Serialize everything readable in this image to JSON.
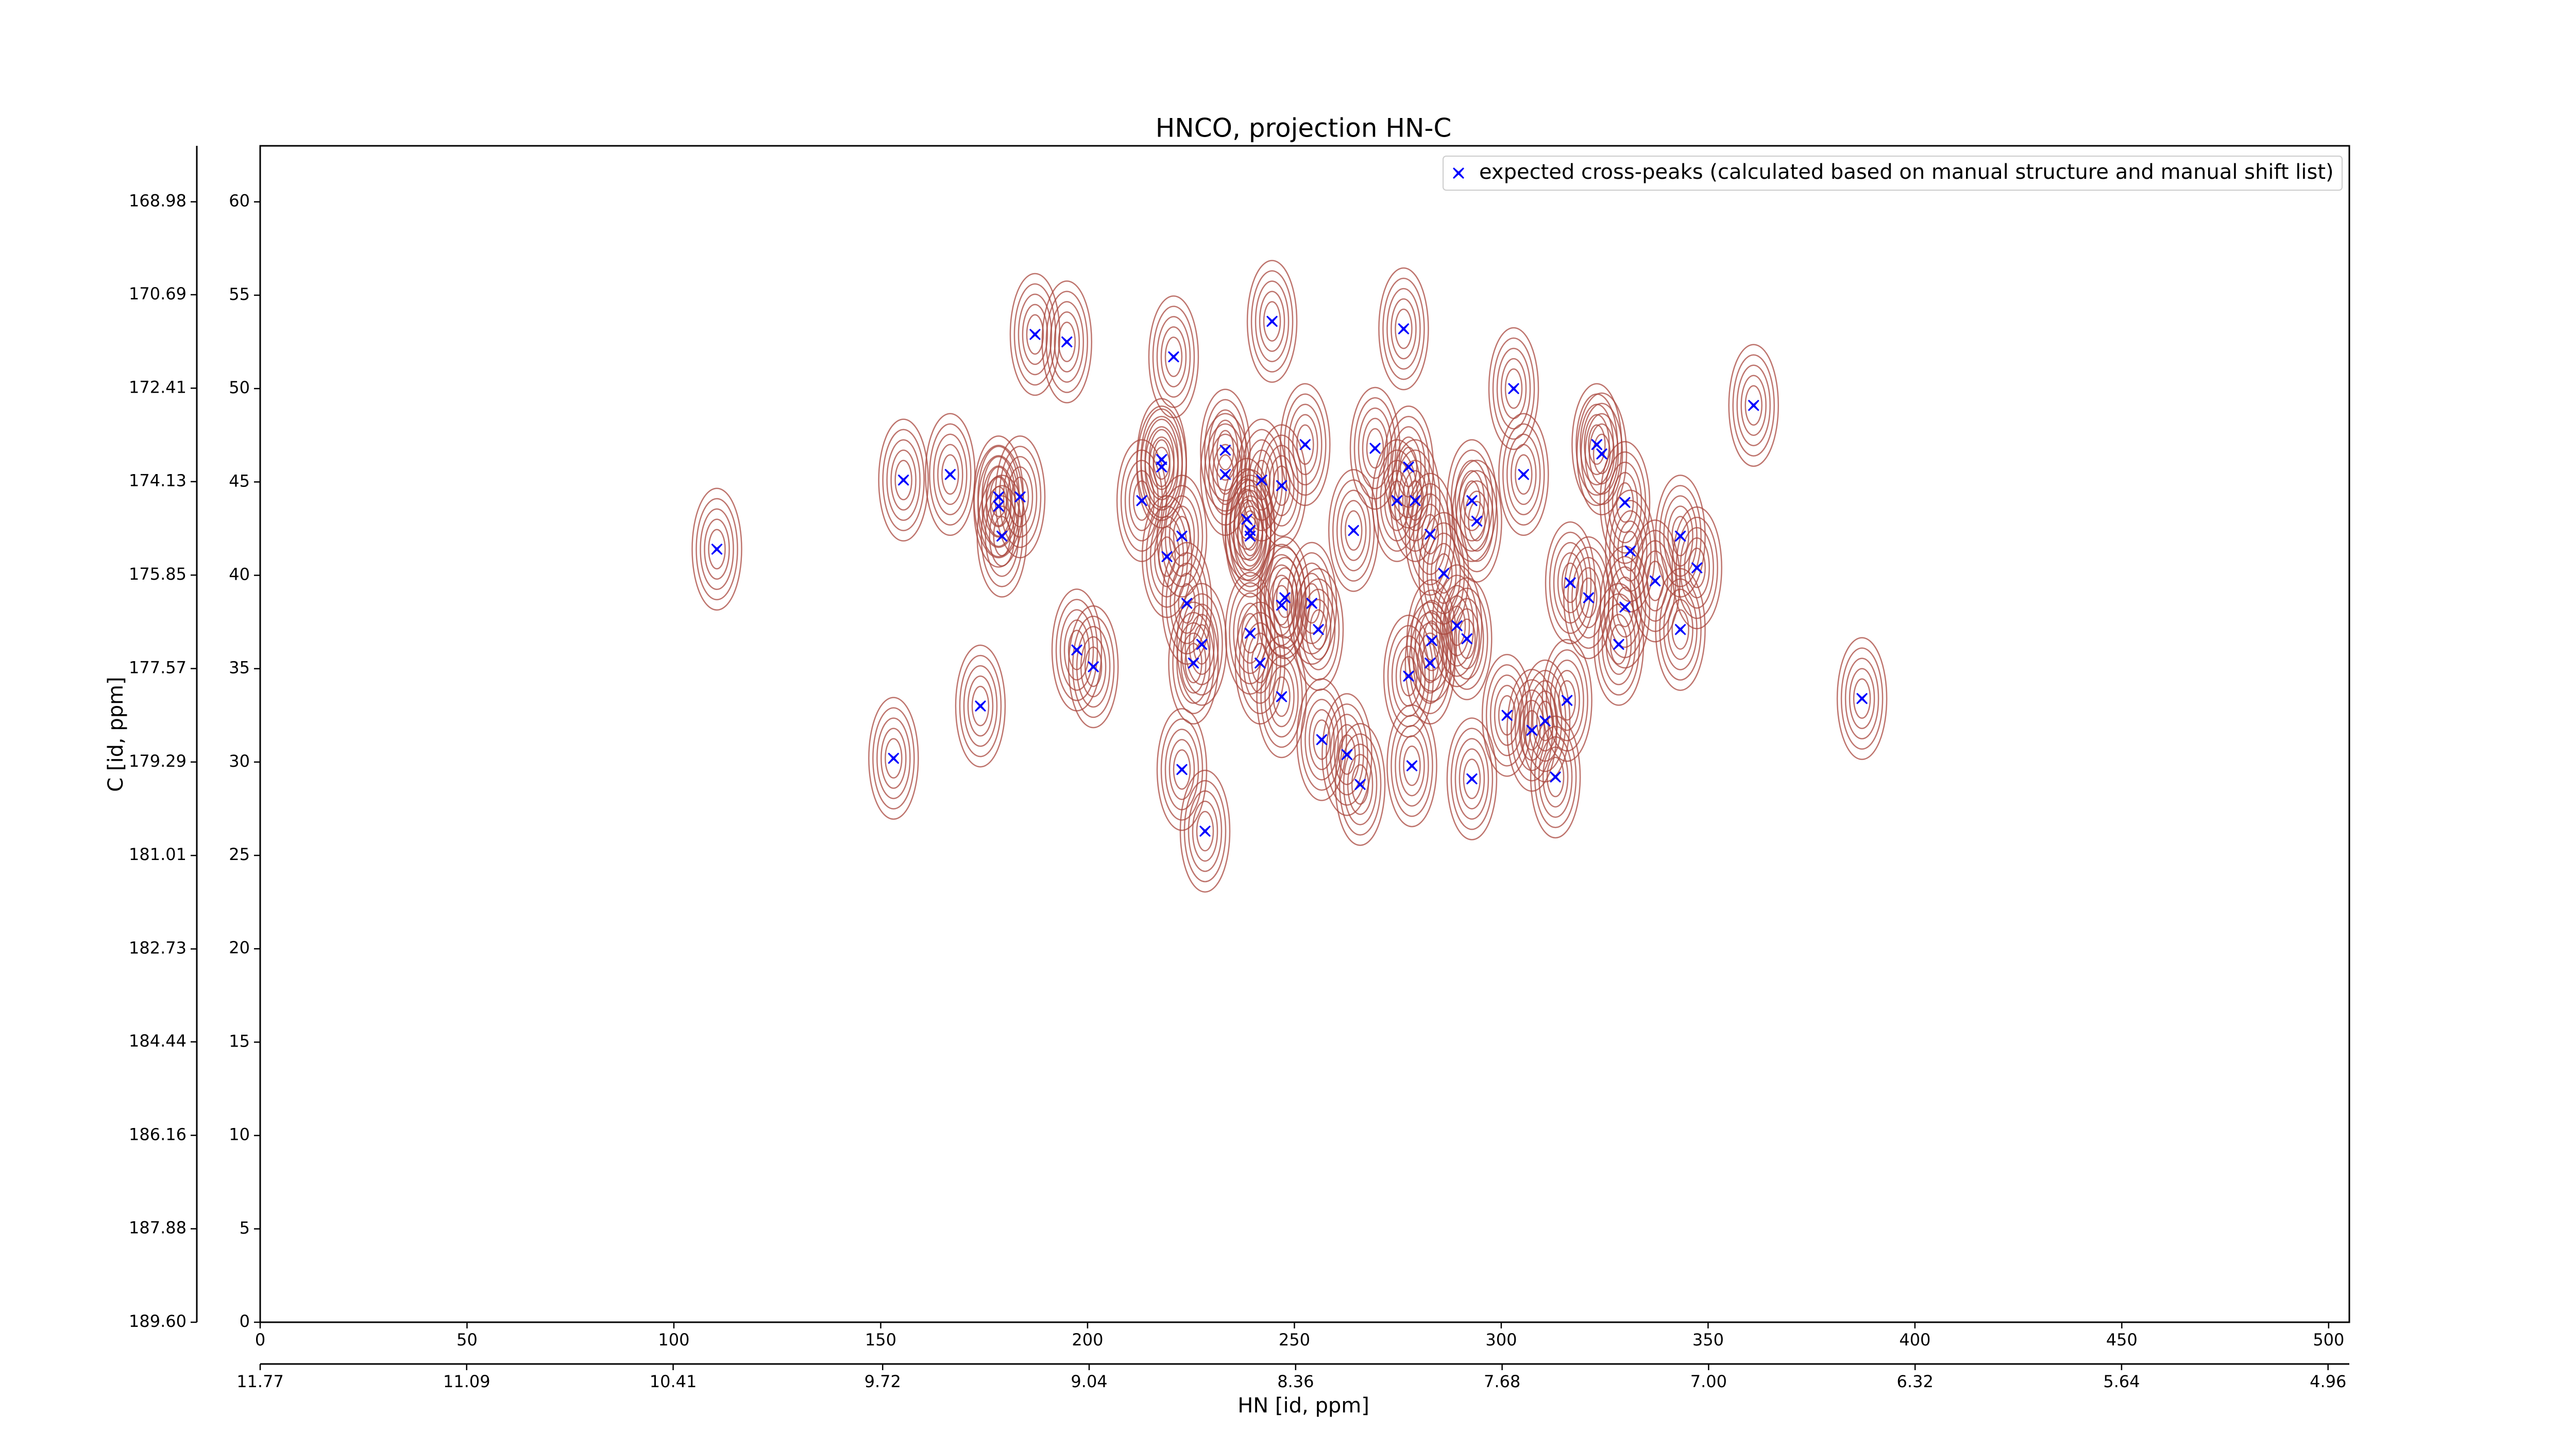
{
  "chart_data": {
    "type": "scatter",
    "title": "HNCO, projection HN-C",
    "x_label": "HN [id, ppm]",
    "y_label": "C [id, ppm]",
    "xlim": [
      0,
      505
    ],
    "xticks": [
      0,
      50,
      100,
      150,
      200,
      250,
      300,
      350,
      400,
      450,
      500
    ],
    "ylim": [
      0,
      63
    ],
    "yticks": [
      0,
      5,
      10,
      15,
      20,
      25,
      30,
      35,
      40,
      45,
      50,
      55,
      60
    ],
    "x2lim": [
      11.77,
      4.89
    ],
    "x2ticks": [
      11.77,
      11.09,
      10.41,
      9.72,
      9.04,
      8.36,
      7.68,
      {
        "value": 7.0,
        "label": "7.00"
      },
      6.32,
      5.64,
      4.96
    ],
    "y2lim": [
      189.6,
      167.95
    ],
    "y2ticks": [
      168.98,
      170.69,
      172.41,
      174.13,
      175.85,
      177.57,
      179.29,
      181.01,
      182.73,
      184.44,
      186.16,
      187.88,
      {
        "value": 189.6,
        "label": "189.60"
      }
    ],
    "contour_color": "#a8453c",
    "legend": "upper right",
    "series": [
      {
        "name": "expected cross-peaks (calculated based on manual structure and manual shift list)",
        "color": "#0000ff",
        "x": [
          110.4,
          155.5,
          166.8,
          178.5,
          178.5,
          183.7,
          179.3,
          187.3,
          195.0,
          174.1,
          153.1,
          197.4,
          201.4,
          213.1,
          217.9,
          217.9,
          220.8,
          222.8,
          219.2,
          224.0,
          227.6,
          225.6,
          222.8,
          228.4,
          233.3,
          233.3,
          238.5,
          239.3,
          239.3,
          242.1,
          246.9,
          244.6,
          252.6,
          239.3,
          241.7,
          247.7,
          246.9,
          246.9,
          254.2,
          255.8,
          256.6,
          262.7,
          265.9,
          264.3,
          269.5,
          276.4,
          274.8,
          277.6,
          279.2,
          282.8,
          286.1,
          283.2,
          282.8,
          277.6,
          278.4,
          289.3,
          291.7,
          292.9,
          294.1,
          292.9,
          303.0,
          305.4,
          301.4,
          307.4,
          310.6,
          315.9,
          313.1,
          316.7,
          321.1,
          323.1,
          324.3,
          329.9,
          331.2,
          329.9,
          328.4,
          337.2,
          343.3,
          347.3,
          343.3,
          361.0,
          387.2
        ],
        "values": [
          41.4,
          45.1,
          45.4,
          44.2,
          43.7,
          44.2,
          42.1,
          52.9,
          52.5,
          33.0,
          30.2,
          36.0,
          35.1,
          44.0,
          45.8,
          46.2,
          51.7,
          42.1,
          41.0,
          38.5,
          36.3,
          35.3,
          29.6,
          26.3,
          46.7,
          45.4,
          43.0,
          42.4,
          42.1,
          45.1,
          44.8,
          53.6,
          47.0,
          36.9,
          35.3,
          38.8,
          38.4,
          33.5,
          38.5,
          37.1,
          31.2,
          30.4,
          28.8,
          42.4,
          46.8,
          53.2,
          44.0,
          45.8,
          44.0,
          42.2,
          40.1,
          36.5,
          35.3,
          34.6,
          29.8,
          37.3,
          36.6,
          44.0,
          42.9,
          29.1,
          50.0,
          45.4,
          32.5,
          31.7,
          32.2,
          33.3,
          29.2,
          39.6,
          38.8,
          47.0,
          46.5,
          43.9,
          41.3,
          38.3,
          36.3,
          39.7,
          42.1,
          40.4,
          37.1,
          49.1,
          33.4
        ]
      }
    ]
  }
}
